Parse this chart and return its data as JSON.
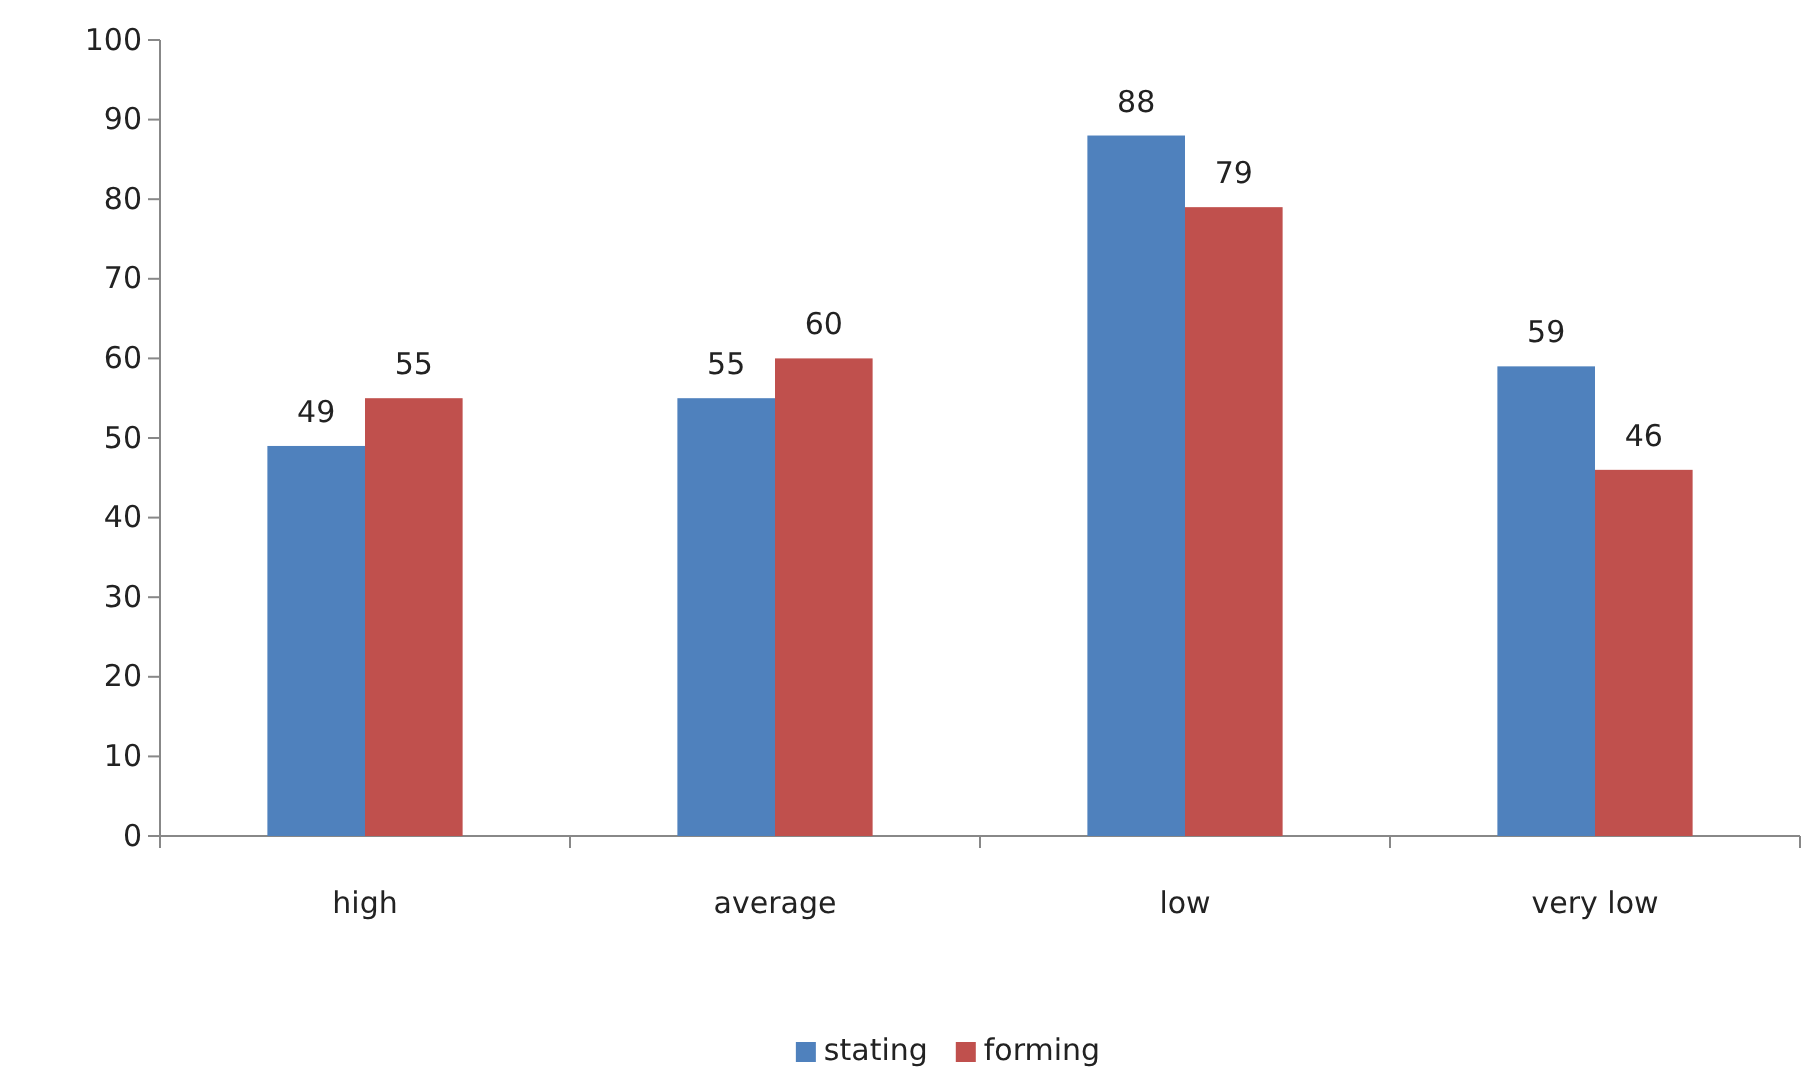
{
  "chart_data": {
    "type": "bar",
    "categories": [
      "high",
      "average",
      "low",
      "very low"
    ],
    "series": [
      {
        "name": "stating",
        "color": "#4f81bd",
        "values": [
          49,
          55,
          88,
          59
        ]
      },
      {
        "name": "forming",
        "color": "#c0504d",
        "values": [
          55,
          60,
          79,
          46
        ]
      }
    ],
    "ylim": [
      0,
      100
    ],
    "yticks": [
      0,
      10,
      20,
      30,
      40,
      50,
      60,
      70,
      80,
      90,
      100
    ],
    "data_labels": true,
    "legend": "bottom",
    "grid": false
  }
}
